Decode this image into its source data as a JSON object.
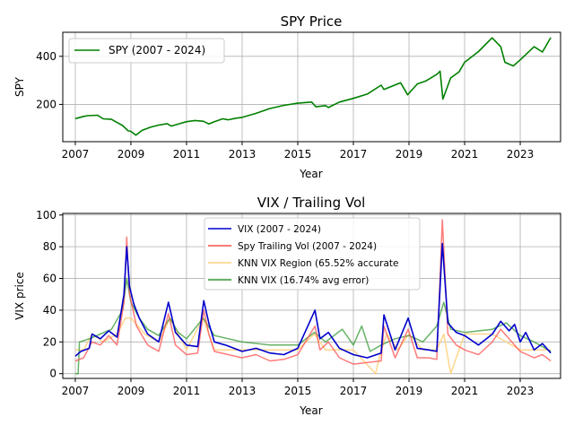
{
  "chart_data": [
    {
      "type": "line",
      "title": "SPY Price",
      "xlabel": "Year",
      "ylabel": "SPY",
      "xlim": [
        2006.55,
        2024.45
      ],
      "ylim": [
        45,
        500
      ],
      "xticks": [
        2007,
        2009,
        2011,
        2013,
        2015,
        2017,
        2019,
        2021,
        2023
      ],
      "yticks": [
        200,
        400
      ],
      "grid": true,
      "legend_position": "top-left",
      "series": [
        {
          "name": "SPY (2007 - 2024)",
          "color": "#008000",
          "x": [
            2007.0,
            2007.3,
            2007.45,
            2007.8,
            2008.0,
            2008.3,
            2008.45,
            2008.7,
            2008.9,
            2009.0,
            2009.18,
            2009.4,
            2009.7,
            2010.0,
            2010.3,
            2010.45,
            2010.7,
            2011.0,
            2011.3,
            2011.6,
            2011.8,
            2012.0,
            2012.3,
            2012.5,
            2012.8,
            2013.0,
            2013.5,
            2014.0,
            2014.5,
            2015.0,
            2015.5,
            2015.65,
            2016.0,
            2016.1,
            2016.5,
            2017.0,
            2017.5,
            2018.0,
            2018.1,
            2018.7,
            2018.95,
            2019.3,
            2019.6,
            2020.0,
            2020.12,
            2020.22,
            2020.5,
            2020.8,
            2021.0,
            2021.5,
            2021.99,
            2022.3,
            2022.45,
            2022.75,
            2023.0,
            2023.5,
            2023.8,
            2024.1
          ],
          "values": [
            141,
            150,
            153,
            155,
            140,
            138,
            128,
            112,
            90,
            88,
            72,
            92,
            105,
            114,
            120,
            110,
            118,
            128,
            133,
            130,
            119,
            128,
            140,
            136,
            143,
            146,
            163,
            183,
            196,
            205,
            210,
            190,
            195,
            187,
            210,
            225,
            243,
            280,
            262,
            290,
            240,
            285,
            297,
            325,
            338,
            222,
            310,
            335,
            375,
            420,
            477,
            440,
            375,
            360,
            385,
            440,
            418,
            478
          ]
        }
      ]
    },
    {
      "type": "line",
      "title": "VIX / Trailing Vol",
      "xlabel": "Year",
      "ylabel": "VIX price",
      "xlim": [
        2006.55,
        2024.45
      ],
      "ylim": [
        -3,
        101
      ],
      "xticks": [
        2007,
        2009,
        2011,
        2013,
        2015,
        2017,
        2019,
        2021,
        2023
      ],
      "yticks": [
        0,
        20,
        40,
        60,
        80,
        100
      ],
      "grid": true,
      "legend_position": "top-center",
      "series": [
        {
          "name": "VIX (2007 - 2024)",
          "color": "#0000cc",
          "x": [
            2007.0,
            2007.2,
            2007.5,
            2007.6,
            2007.9,
            2008.2,
            2008.5,
            2008.75,
            2008.85,
            2008.95,
            2009.1,
            2009.3,
            2009.6,
            2010.0,
            2010.35,
            2010.6,
            2011.0,
            2011.4,
            2011.62,
            2011.8,
            2012.0,
            2012.4,
            2013.0,
            2013.5,
            2014.0,
            2014.5,
            2015.0,
            2015.62,
            2015.8,
            2016.1,
            2016.5,
            2017.0,
            2017.5,
            2018.0,
            2018.1,
            2018.5,
            2018.97,
            2019.3,
            2019.7,
            2020.0,
            2020.2,
            2020.4,
            2020.7,
            2021.0,
            2021.5,
            2022.0,
            2022.3,
            2022.6,
            2022.8,
            2023.0,
            2023.2,
            2023.5,
            2023.8,
            2024.1
          ],
          "values": [
            11,
            14,
            16,
            25,
            22,
            27,
            23,
            50,
            80,
            55,
            44,
            35,
            25,
            20,
            45,
            26,
            18,
            17,
            46,
            32,
            20,
            18,
            14,
            16,
            13,
            12,
            16,
            40,
            22,
            26,
            16,
            12,
            10,
            13,
            37,
            15,
            35,
            16,
            15,
            14,
            82,
            32,
            26,
            24,
            18,
            25,
            33,
            27,
            31,
            20,
            26,
            15,
            19,
            13
          ]
        },
        {
          "name": "Spy Trailing Vol (2007 - 2024)",
          "color": "#ff5050",
          "x": [
            2007.0,
            2007.3,
            2007.6,
            2007.9,
            2008.2,
            2008.5,
            2008.75,
            2008.85,
            2008.95,
            2009.2,
            2009.6,
            2010.0,
            2010.35,
            2010.6,
            2011.0,
            2011.4,
            2011.62,
            2011.8,
            2012.0,
            2012.5,
            2013.0,
            2013.5,
            2014.0,
            2014.5,
            2015.0,
            2015.62,
            2015.8,
            2016.1,
            2016.5,
            2017.0,
            2017.5,
            2018.0,
            2018.1,
            2018.5,
            2018.97,
            2019.3,
            2019.7,
            2020.0,
            2020.2,
            2020.4,
            2020.7,
            2021.0,
            2021.5,
            2022.0,
            2022.3,
            2022.6,
            2023.0,
            2023.5,
            2023.8,
            2024.1
          ],
          "values": [
            8,
            10,
            20,
            18,
            24,
            18,
            45,
            86,
            50,
            30,
            18,
            14,
            38,
            18,
            12,
            13,
            40,
            25,
            14,
            12,
            10,
            12,
            8,
            9,
            12,
            30,
            15,
            20,
            10,
            6,
            7,
            8,
            30,
            10,
            28,
            10,
            10,
            9,
            97,
            25,
            18,
            15,
            12,
            20,
            28,
            22,
            14,
            10,
            12,
            8
          ]
        },
        {
          "name": "KNN VIX Region (65.52% accurate",
          "color": "#ffd27f",
          "x": [
            2007.0,
            2007.3,
            2007.6,
            2008.0,
            2008.5,
            2008.8,
            2009.0,
            2009.5,
            2010.0,
            2010.4,
            2011.0,
            2011.6,
            2012.0,
            2013.0,
            2014.0,
            2015.0,
            2015.6,
            2016.0,
            2017.0,
            2017.8,
            2018.0,
            2018.2,
            2018.6,
            2019.0,
            2019.5,
            2020.0,
            2020.25,
            2020.5,
            2021.0,
            2022.0,
            2023.0,
            2024.1
          ],
          "values": [
            15,
            15,
            25,
            20,
            25,
            35,
            35,
            25,
            20,
            35,
            15,
            35,
            15,
            15,
            15,
            15,
            25,
            15,
            15,
            0,
            15,
            25,
            15,
            25,
            15,
            15,
            25,
            0,
            25,
            25,
            15,
            15
          ]
        },
        {
          "name": "KNN VIX (16.74% avg error)",
          "color": "#339933",
          "x": [
            2007.0,
            2007.1,
            2007.15,
            2007.5,
            2007.9,
            2008.3,
            2008.7,
            2008.85,
            2009.0,
            2009.3,
            2009.6,
            2010.0,
            2010.4,
            2010.7,
            2011.0,
            2011.6,
            2012.0,
            2013.0,
            2014.0,
            2015.0,
            2015.6,
            2016.0,
            2016.6,
            2017.0,
            2017.3,
            2017.6,
            2018.0,
            2018.5,
            2019.0,
            2019.5,
            2020.0,
            2020.25,
            2020.5,
            2021.0,
            2022.0,
            2022.5,
            2023.0,
            2023.5,
            2024.1
          ],
          "values": [
            0,
            0,
            20,
            22,
            25,
            28,
            40,
            60,
            45,
            35,
            28,
            24,
            35,
            26,
            22,
            35,
            24,
            20,
            18,
            18,
            26,
            20,
            28,
            18,
            30,
            14,
            18,
            22,
            24,
            20,
            30,
            45,
            28,
            26,
            28,
            32,
            24,
            20,
            14
          ]
        }
      ]
    }
  ]
}
